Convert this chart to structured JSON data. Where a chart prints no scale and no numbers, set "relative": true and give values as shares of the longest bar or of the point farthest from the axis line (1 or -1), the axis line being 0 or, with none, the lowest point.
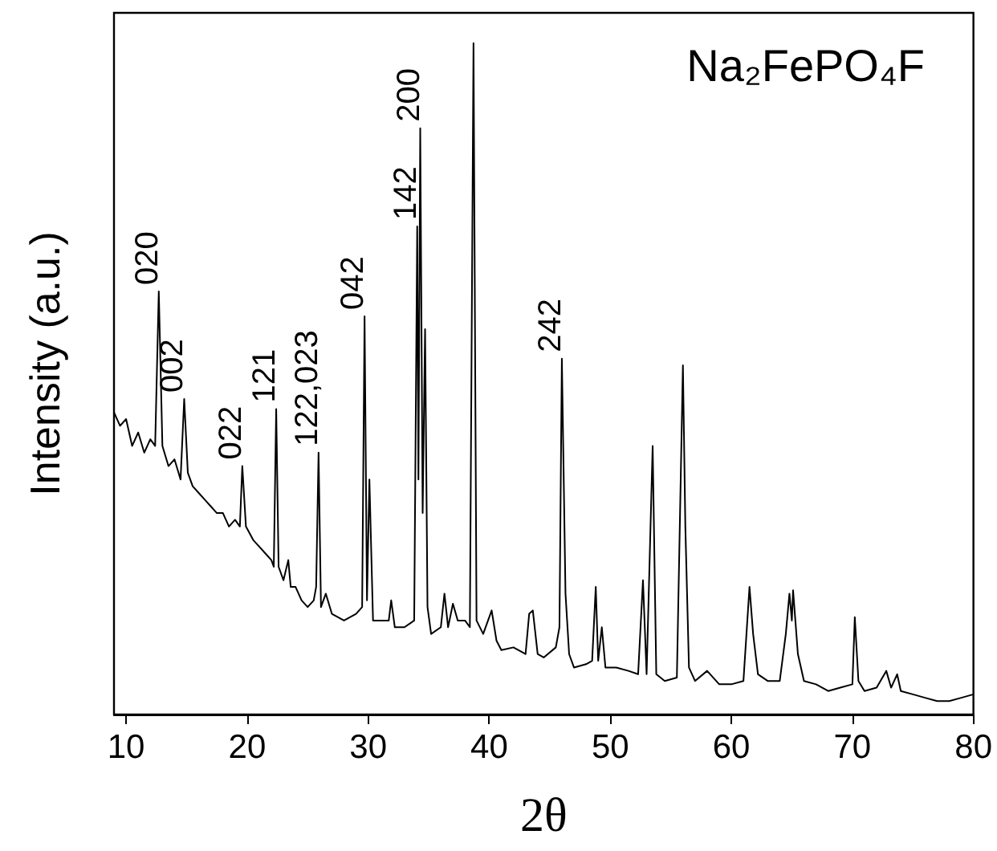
{
  "chart_data": {
    "type": "line",
    "title": "Na₂FePO₄F",
    "xlabel": "2θ",
    "ylabel": "Intensity (a.u.)",
    "relative": true,
    "xlim": [
      9,
      80
    ],
    "xticks": [
      10,
      20,
      30,
      40,
      50,
      60,
      70,
      80
    ],
    "tick_labels": "x",
    "grid": false,
    "marker": "none",
    "line_style": "solid",
    "series": [
      {
        "color": "#000000",
        "x": [
          9,
          9.5,
          10,
          10.5,
          11,
          11.5,
          12,
          12.4,
          12.7,
          13,
          13.5,
          14,
          14.5,
          14.8,
          15.1,
          15.5,
          16,
          16.5,
          17,
          17.5,
          18,
          18.5,
          19,
          19.4,
          19.6,
          19.9,
          20.5,
          21,
          21.5,
          22,
          22.2,
          22.4,
          22.6,
          23,
          23.4,
          23.6,
          24,
          24.5,
          25,
          25.5,
          25.7,
          25.9,
          26.1,
          26.5,
          27,
          28,
          29,
          29.5,
          29.7,
          29.9,
          30.1,
          30.4,
          31,
          31.7,
          31.9,
          32.2,
          33,
          33.8,
          34.05,
          34.15,
          34.3,
          34.5,
          34.7,
          34.9,
          35.2,
          36,
          36.3,
          36.6,
          37,
          37.4,
          38,
          38.4,
          38.7,
          38.95,
          39.5,
          40.2,
          40.6,
          41,
          42,
          43,
          43.3,
          43.6,
          44,
          44.5,
          45.5,
          45.8,
          46,
          46.3,
          46.6,
          47,
          48,
          48.5,
          48.8,
          49,
          49.3,
          49.6,
          50.5,
          51.5,
          52.3,
          52.7,
          53,
          53.5,
          53.8,
          54.5,
          55.5,
          56,
          56.2,
          56.5,
          57,
          58,
          59,
          60,
          61,
          61.5,
          61.8,
          62.2,
          63,
          64,
          64.5,
          64.8,
          65,
          65.1,
          65.5,
          66,
          67,
          68,
          69,
          70,
          70.2,
          70.5,
          71,
          72,
          72.8,
          73.2,
          73.7,
          74,
          75,
          76,
          77,
          78,
          79,
          80
        ],
        "values": [
          0.45,
          0.43,
          0.44,
          0.4,
          0.42,
          0.39,
          0.41,
          0.4,
          0.63,
          0.4,
          0.37,
          0.38,
          0.35,
          0.47,
          0.36,
          0.34,
          0.33,
          0.32,
          0.31,
          0.3,
          0.3,
          0.28,
          0.29,
          0.28,
          0.37,
          0.28,
          0.26,
          0.25,
          0.24,
          0.23,
          0.22,
          0.455,
          0.22,
          0.2,
          0.23,
          0.19,
          0.19,
          0.17,
          0.16,
          0.17,
          0.19,
          0.39,
          0.16,
          0.18,
          0.15,
          0.14,
          0.15,
          0.16,
          0.593,
          0.17,
          0.35,
          0.14,
          0.14,
          0.14,
          0.17,
          0.13,
          0.13,
          0.14,
          0.727,
          0.35,
          0.873,
          0.3,
          0.574,
          0.16,
          0.12,
          0.13,
          0.18,
          0.13,
          0.165,
          0.14,
          0.14,
          0.13,
          1,
          0.14,
          0.12,
          0.155,
          0.11,
          0.096,
          0.1,
          0.09,
          0.15,
          0.155,
          0.09,
          0.085,
          0.1,
          0.13,
          0.53,
          0.18,
          0.09,
          0.07,
          0.075,
          0.08,
          0.19,
          0.08,
          0.13,
          0.07,
          0.07,
          0.065,
          0.06,
          0.2,
          0.06,
          0.4,
          0.06,
          0.05,
          0.055,
          0.52,
          0.28,
          0.07,
          0.05,
          0.065,
          0.045,
          0.045,
          0.05,
          0.19,
          0.12,
          0.06,
          0.05,
          0.05,
          0.12,
          0.18,
          0.14,
          0.185,
          0.09,
          0.05,
          0.045,
          0.035,
          0.04,
          0.045,
          0.145,
          0.05,
          0.035,
          0.04,
          0.065,
          0.04,
          0.06,
          0.035,
          0.03,
          0.025,
          0.02,
          0.02,
          0.025,
          0.03
        ]
      }
    ],
    "annotations": [
      {
        "text": "020",
        "x": 12.7,
        "y": 0.63
      },
      {
        "text": "002",
        "x": 14.8,
        "y": 0.47
      },
      {
        "text": "022",
        "x": 19.6,
        "y": 0.37
      },
      {
        "text": "121",
        "x": 22.4,
        "y": 0.455
      },
      {
        "text": "122,023",
        "x": 25.9,
        "y": 0.39
      },
      {
        "text": "042",
        "x": 29.7,
        "y": 0.593
      },
      {
        "text": "142",
        "x": 34.05,
        "y": 0.727
      },
      {
        "text": "200",
        "x": 34.3,
        "y": 0.873
      },
      {
        "text": "242",
        "x": 46,
        "y": 0.53
      }
    ]
  }
}
